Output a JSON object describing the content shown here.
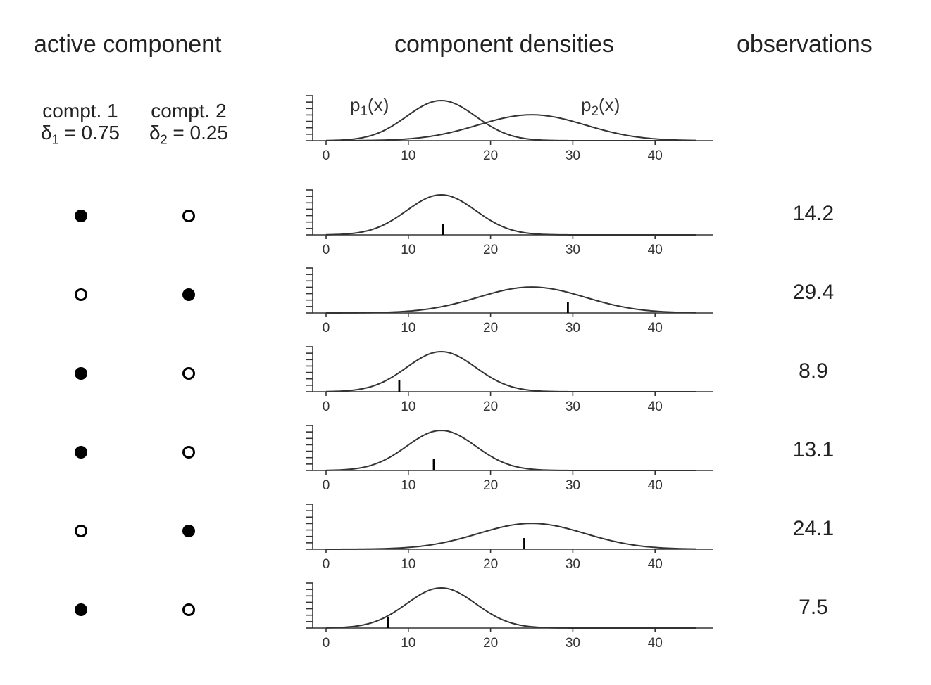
{
  "headers": {
    "active": "active component",
    "densities": "component densities",
    "observations": "observations"
  },
  "components": [
    {
      "label": "compt. 1",
      "weight_symbol": "δ",
      "weight_index": "1",
      "weight_text": " = 0.75",
      "weight": 0.75
    },
    {
      "label": "compt. 2",
      "weight_symbol": "δ",
      "weight_index": "2",
      "weight_text": " = 0.25",
      "weight": 0.25
    }
  ],
  "chart_data": {
    "type": "line",
    "xlim": [
      0,
      45
    ],
    "x_ticks": [
      "0",
      "10",
      "20",
      "30",
      "40"
    ],
    "densities": [
      {
        "name_base": "p",
        "name_index": "1",
        "name_suffix": "(x)",
        "mean": 14,
        "sd": 4.2
      },
      {
        "name_base": "p",
        "name_index": "2",
        "name_suffix": "(x)",
        "mean": 25,
        "sd": 6.5
      }
    ],
    "rows": [
      {
        "active": 1,
        "observation": "14.2",
        "x": 14.2
      },
      {
        "active": 2,
        "observation": "29.4",
        "x": 29.4
      },
      {
        "active": 1,
        "observation": "8.9",
        "x": 8.9
      },
      {
        "active": 1,
        "observation": "13.1",
        "x": 13.1
      },
      {
        "active": 2,
        "observation": "24.1",
        "x": 24.1
      },
      {
        "active": 1,
        "observation": "7.5",
        "x": 7.5
      }
    ]
  }
}
